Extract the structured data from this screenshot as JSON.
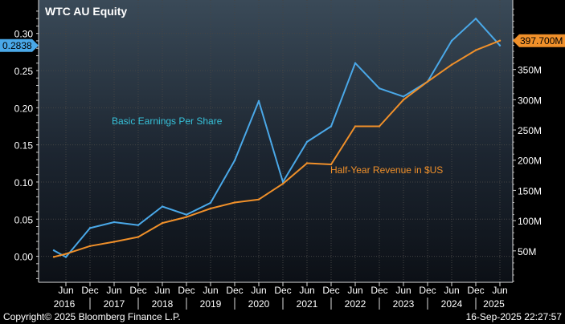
{
  "chart_data": {
    "type": "line",
    "title": "WTC AU Equity",
    "x": [
      "2016-01",
      "2016-06",
      "2016-12",
      "2017-06",
      "2017-12",
      "2018-06",
      "2018-12",
      "2019-06",
      "2019-12",
      "2020-06",
      "2020-12",
      "2021-06",
      "2021-12",
      "2022-06",
      "2022-12",
      "2023-06",
      "2023-12",
      "2024-06",
      "2024-12",
      "2025-06"
    ],
    "series": [
      {
        "name": "Basic Earnings Per Share",
        "axis": "left",
        "color": "#4aa8e8",
        "values": [
          0.008,
          -0.001,
          0.038,
          0.046,
          0.042,
          0.067,
          0.056,
          0.072,
          0.129,
          0.209,
          0.1,
          0.154,
          0.175,
          0.26,
          0.226,
          0.215,
          0.235,
          0.29,
          0.32,
          0.2838
        ]
      },
      {
        "name": "Half-Year Revenue in $US",
        "axis": "right",
        "color": "#f0902a",
        "values": [
          40,
          45,
          58,
          65,
          73,
          96,
          106,
          120,
          130,
          135,
          161,
          195,
          193,
          256,
          256,
          300,
          330,
          358,
          382,
          397.7
        ]
      }
    ],
    "left_axis": {
      "ylim": [
        -0.035,
        0.345
      ],
      "ticks": [
        0.3,
        0.25,
        0.2,
        0.15,
        0.1,
        0.05,
        0.0
      ],
      "tick_labels": [
        "0.30",
        "0.25",
        "0.20",
        "0.15",
        "0.10",
        "0.05",
        "0.00"
      ]
    },
    "right_axis": {
      "ylim": [
        -2,
        465
      ],
      "ticks": [
        350,
        300,
        250,
        200,
        150,
        100,
        50
      ],
      "tick_labels": [
        "350M",
        "300M",
        "250M",
        "200M",
        "150M",
        "100M",
        "50M"
      ]
    },
    "x_tick_labels": [
      "Jun",
      "Dec",
      "Jun",
      "Dec",
      "Jun",
      "Dec",
      "Jun",
      "Dec",
      "Jun",
      "Dec",
      "Jun",
      "Dec",
      "Jun",
      "Dec",
      "Jun",
      "Dec",
      "Jun",
      "Dec",
      "Jun"
    ],
    "year_labels": [
      "2016",
      "2017",
      "2018",
      "2019",
      "2020",
      "2021",
      "2022",
      "2023",
      "2024",
      "2025"
    ],
    "last_value_labels": {
      "left": "0.2838",
      "right": "397.700M"
    },
    "annotations": {
      "eps": "Basic Earnings Per Share",
      "revenue": "Half-Year Revenue in $US"
    },
    "colors": {
      "eps": "#4aa8e8",
      "revenue": "#f0902a",
      "eps_label": "#36c0d8",
      "axis_text": "#ffffff",
      "grid": "#444444"
    },
    "grid": true
  },
  "footer": {
    "copyright": "Copyright© 2025 Bloomberg Finance L.P.",
    "timestamp": "16-Sep-2025  22:27:57"
  }
}
